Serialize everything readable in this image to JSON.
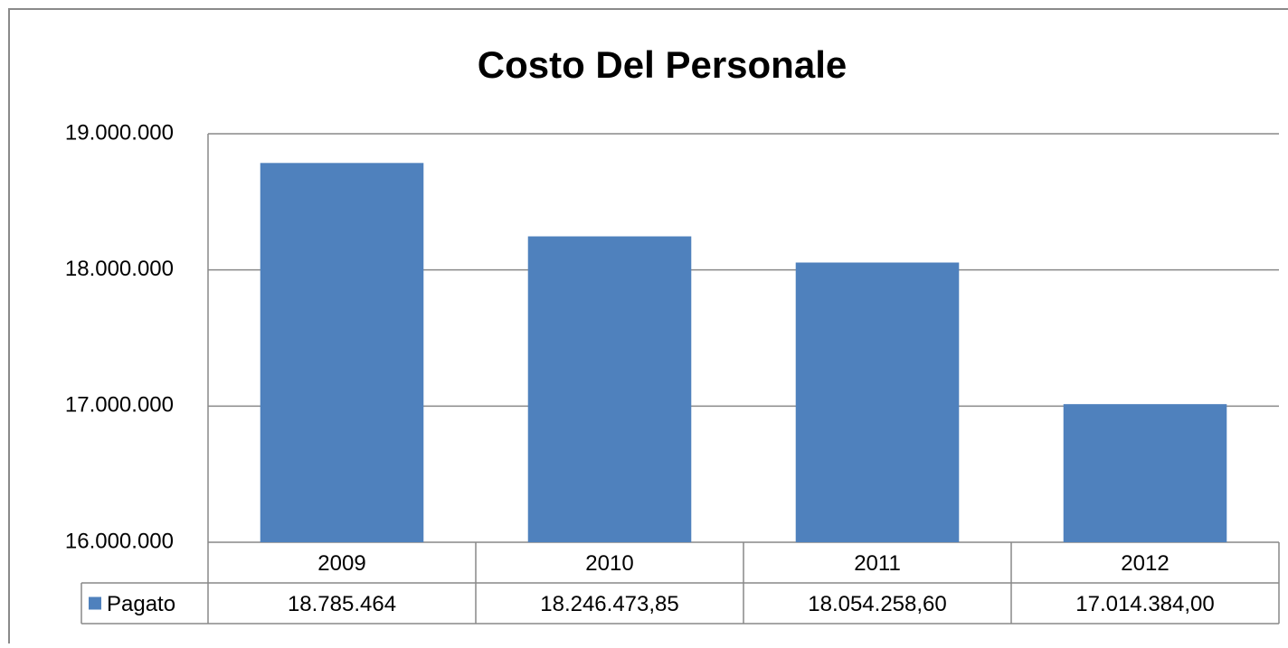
{
  "chart_data": {
    "type": "bar",
    "title": "Costo Del Personale",
    "categories": [
      "2009",
      "2010",
      "2011",
      "2012"
    ],
    "series": [
      {
        "name": "Pagato",
        "color": "#4f81bd",
        "values": [
          18785464,
          18246473.85,
          18054258.6,
          17014384.0
        ],
        "value_labels": [
          "18.785.464",
          "18.246.473,85",
          "18.054.258,60",
          "17.014.384,00"
        ]
      }
    ],
    "ylim": [
      16000000,
      19000000
    ],
    "yticks": [
      {
        "value": 16000000,
        "label": "16.000.000"
      },
      {
        "value": 17000000,
        "label": "17.000.000"
      },
      {
        "value": 18000000,
        "label": "18.000.000"
      },
      {
        "value": 19000000,
        "label": "19.000.000"
      }
    ],
    "grid": true
  }
}
